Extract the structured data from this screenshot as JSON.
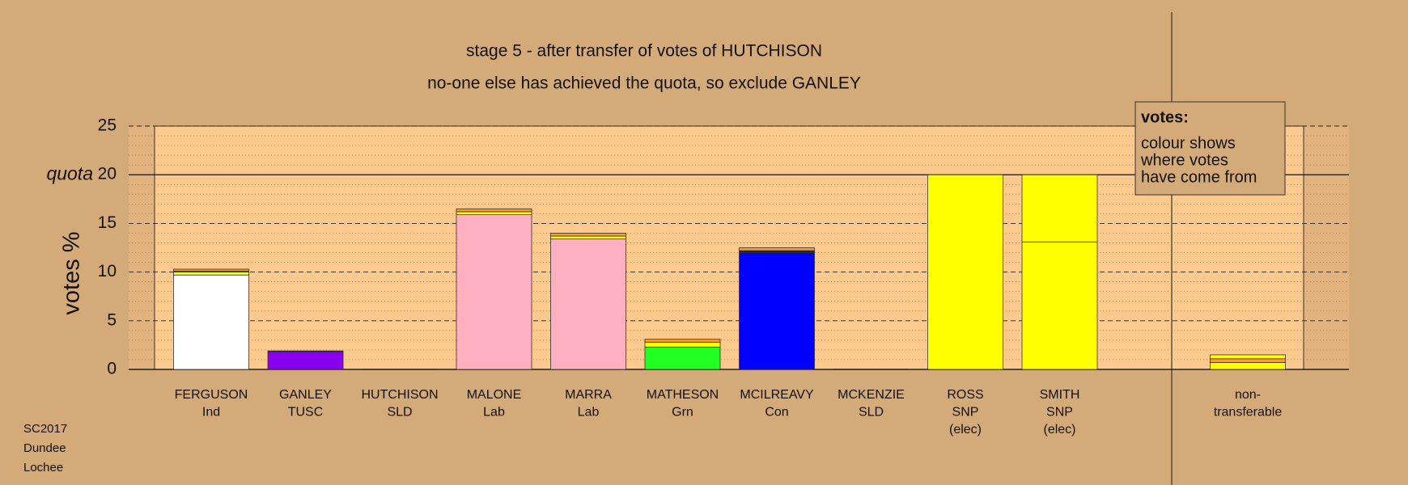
{
  "chart_data": {
    "type": "stacked-bar",
    "title": "stage 5 - after transfer of votes of HUTCHISON",
    "subtitle": "no-one else has achieved the quota, so exclude GANLEY",
    "y_label": "votes %",
    "quota": 20,
    "quota_label": "quota",
    "ylim": [
      0,
      25
    ],
    "yticks": [
      0,
      5,
      10,
      15,
      20,
      25
    ],
    "grid": true,
    "categories": [
      [
        "FERGUSON",
        "Ind"
      ],
      [
        "GANLEY",
        "TUSC"
      ],
      [
        "HUTCHISON",
        "SLD"
      ],
      [
        "MALONE",
        "Lab"
      ],
      [
        "MARRA",
        "Lab"
      ],
      [
        "MATHESON",
        "Grn"
      ],
      [
        "MCILREAVY",
        "Con"
      ],
      [
        "MCKENZIE",
        "SLD"
      ],
      [
        "ROSS",
        "SNP",
        "(elec)"
      ],
      [
        "SMITH",
        "SNP",
        "(elec)"
      ],
      [
        "non-",
        "transferable"
      ]
    ],
    "stacks": [
      [
        {
          "color": "#ffffff",
          "value": 9.7
        },
        {
          "color": "#ffff00",
          "value": 0.3
        },
        {
          "color": "#22ff22",
          "value": 0.1
        },
        {
          "color": "#ff9933",
          "value": 0.2
        }
      ],
      [
        {
          "color": "#8800ee",
          "value": 1.8
        },
        {
          "color": "#222222",
          "value": 0.1
        }
      ],
      [],
      [
        {
          "color": "#ffb0c0",
          "value": 15.9
        },
        {
          "color": "#ffff00",
          "value": 0.3
        },
        {
          "color": "#ff9933",
          "value": 0.3
        }
      ],
      [
        {
          "color": "#ffb0c0",
          "value": 13.4
        },
        {
          "color": "#ffff00",
          "value": 0.3
        },
        {
          "color": "#ff9933",
          "value": 0.3
        }
      ],
      [
        {
          "color": "#22ff22",
          "value": 2.3
        },
        {
          "color": "#ffff00",
          "value": 0.5
        },
        {
          "color": "#ff9933",
          "value": 0.3
        }
      ],
      [
        {
          "color": "#0000ff",
          "value": 12.0
        },
        {
          "color": "#222222",
          "value": 0.2
        },
        {
          "color": "#ff9933",
          "value": 0.3
        }
      ],
      [],
      [
        {
          "color": "#ffff00",
          "value": 20
        }
      ],
      [
        {
          "color": "#ffff00",
          "value": 13.1
        },
        {
          "color": "#ffff00",
          "value": 6.9
        }
      ],
      [
        {
          "color": "#ffff00",
          "value": 0.7
        },
        {
          "color": "#ff9933",
          "value": 0.4
        },
        {
          "color": "#ffff00",
          "value": 0.4
        }
      ]
    ],
    "legend": {
      "heading": "votes:",
      "lines": [
        "colour shows",
        "where votes",
        "have come from"
      ]
    },
    "footnote": [
      "SC2017",
      "Dundee",
      "Lochee"
    ]
  }
}
